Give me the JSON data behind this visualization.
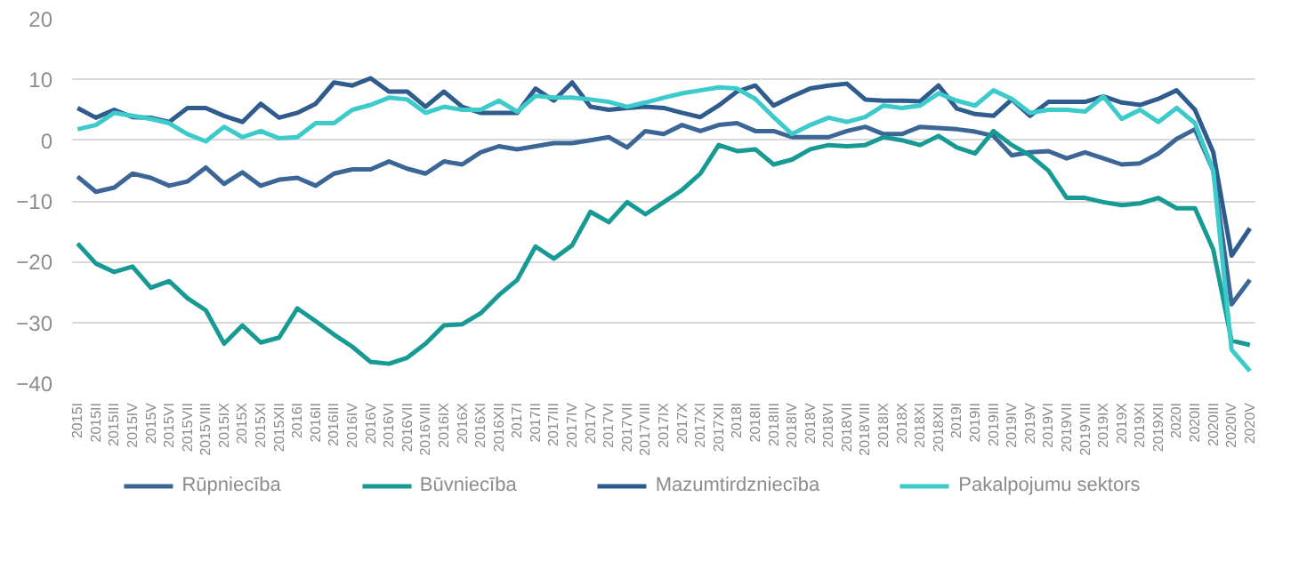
{
  "chart_data": {
    "type": "line",
    "categories": [
      "2015I",
      "2015II",
      "2015III",
      "2015IV",
      "2015V",
      "2015VI",
      "2015VII",
      "2015VIII",
      "2015IX",
      "2015X",
      "2015XI",
      "2015XII",
      "2016I",
      "2016II",
      "2016III",
      "2016IV",
      "2016V",
      "2016VI",
      "2016VII",
      "2016VIII",
      "2016IX",
      "2016X",
      "2016XI",
      "2016XII",
      "2017I",
      "2017II",
      "2017III",
      "2017IV",
      "2017V",
      "2017VI",
      "2017VII",
      "2017VIII",
      "2017IX",
      "2017X",
      "2017XI",
      "2017XII",
      "2018I",
      "2018II",
      "2018III",
      "2018IV",
      "2018V",
      "2018VI",
      "2018VII",
      "2018VIII",
      "2018IX",
      "2018X",
      "2018XI",
      "2018XII",
      "2019I",
      "2019II",
      "2019III",
      "2019IV",
      "2019V",
      "2019VI",
      "2019VII",
      "2019VIII",
      "2019IX",
      "2019X",
      "2019XI",
      "2019XII",
      "2020I",
      "2020II",
      "2020III",
      "2020IV",
      "2020V"
    ],
    "series": [
      {
        "name": "Rūpniecība",
        "color": "#3b6696",
        "values": [
          -6,
          -8.5,
          -7.8,
          -5.5,
          -6.2,
          -7.5,
          -6.8,
          -4.5,
          -7.2,
          -5.3,
          -7.5,
          -6.5,
          -6.2,
          -7.5,
          -5.5,
          -4.8,
          -4.8,
          -3.5,
          -4.7,
          -5.5,
          -3.5,
          -4,
          -2,
          -1,
          -1.5,
          -1,
          -0.5,
          -0.5,
          0,
          0.5,
          -1.2,
          1.5,
          1,
          2.5,
          1.5,
          2.5,
          2.8,
          1.5,
          1.5,
          0.5,
          0.5,
          0.5,
          1.5,
          2.2,
          1,
          1,
          2.2,
          2,
          1.8,
          1.4,
          0.7,
          -2.5,
          -2,
          -1.8,
          -3,
          -2,
          -3,
          -4,
          -3.8,
          -2.2,
          0.2,
          1.8,
          -5,
          -27,
          -23
        ]
      },
      {
        "name": "Būvniecība",
        "color": "#169a93",
        "values": [
          -17,
          -20.3,
          -21.7,
          -20.8,
          -24.3,
          -23.2,
          -26,
          -28,
          -33.5,
          -30.5,
          -33.3,
          -32.5,
          -27.7,
          -29.8,
          -32,
          -34,
          -36.5,
          -36.8,
          -35.8,
          -33.5,
          -30.5,
          -30.3,
          -28.5,
          -25.5,
          -23,
          -17.5,
          -19.5,
          -17.3,
          -11.8,
          -13.5,
          -10.2,
          -12.2,
          -10.2,
          -8.2,
          -5.5,
          -0.8,
          -1.8,
          -1.5,
          -4,
          -3.2,
          -1.5,
          -0.8,
          -1,
          -0.8,
          0.5,
          0,
          -0.8,
          0.7,
          -1.2,
          -2.2,
          1.5,
          -0.8,
          -2.5,
          -5,
          -9.5,
          -9.5,
          -10.2,
          -10.7,
          -10.4,
          -9.5,
          -11.2,
          -11.2,
          -18,
          -33,
          -33.7
        ]
      },
      {
        "name": "Mazumtirdzniecība",
        "color": "#2f5b8d",
        "values": [
          5.3,
          3.7,
          5,
          3.8,
          3.7,
          3,
          5.3,
          5.3,
          4,
          3,
          6,
          3.7,
          4.5,
          6,
          9.5,
          9,
          10.2,
          8,
          8,
          5.5,
          8,
          5.5,
          4.5,
          4.5,
          4.5,
          8.5,
          6.5,
          9.5,
          5.5,
          5,
          5.3,
          5.5,
          5.3,
          4.5,
          3.8,
          5.7,
          8,
          9,
          5.7,
          7.2,
          8.5,
          9,
          9.3,
          6.7,
          6.5,
          6.5,
          6.4,
          9,
          5.2,
          4.3,
          4,
          6.7,
          4,
          6.3,
          6.3,
          6.3,
          7.2,
          6.2,
          5.8,
          6.8,
          8.2,
          5,
          -2,
          -19,
          -14.5
        ]
      },
      {
        "name": "Pakalpojumu sektors",
        "color": "#3ccaca",
        "values": [
          1.8,
          2.5,
          4.5,
          4,
          3.5,
          2.8,
          1,
          -0.2,
          2.2,
          0.5,
          1.5,
          0.3,
          0.5,
          2.8,
          2.8,
          5,
          5.8,
          7,
          6.7,
          4.5,
          5.5,
          5,
          5,
          6.5,
          4.7,
          7.3,
          7,
          7,
          6.7,
          6.3,
          5.5,
          6.2,
          7,
          7.7,
          8.2,
          8.7,
          8.5,
          6.8,
          3.8,
          1,
          2.5,
          3.7,
          3,
          3.8,
          5.7,
          5.3,
          5.7,
          7.7,
          6.5,
          5.7,
          8.2,
          6.8,
          4.5,
          5,
          5,
          4.7,
          7.2,
          3.5,
          5,
          3,
          5.3,
          2.8,
          -5,
          -34.5,
          -38
        ]
      }
    ],
    "ylim": [
      -40,
      20
    ],
    "yticks": [
      -40,
      -30,
      -20,
      -10,
      0,
      10,
      20
    ],
    "grid": "y",
    "legend": "bottom"
  }
}
